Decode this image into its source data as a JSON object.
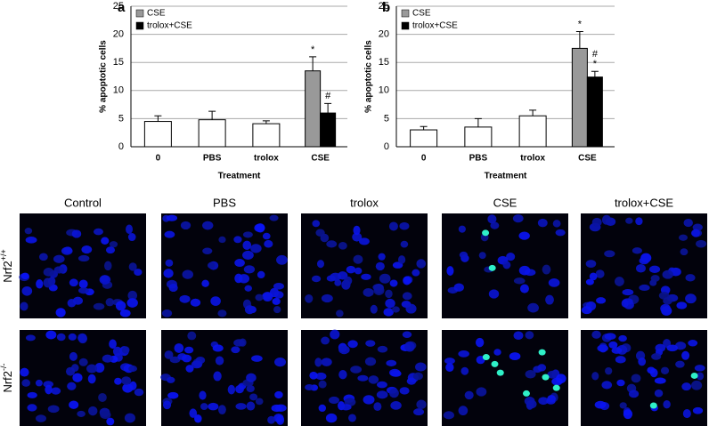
{
  "chart_data": [
    {
      "type": "bar",
      "panel": "a",
      "ylabel": "% apoptotic cells",
      "xlabel": "Treatment",
      "categories": [
        "0",
        "PBS",
        "trolox",
        "CSE"
      ],
      "series": [
        {
          "color": "#ffffff",
          "values": [
            4.5,
            4.8,
            4.1,
            null
          ],
          "errors": [
            1.0,
            1.5,
            0.5,
            null
          ]
        },
        {
          "name": "CSE",
          "color": "#999999",
          "values": [
            null,
            null,
            null,
            13.5
          ],
          "errors": [
            null,
            null,
            null,
            2.5
          ],
          "annotations": [
            null,
            null,
            null,
            [
              "*"
            ]
          ]
        },
        {
          "name": "trolox+CSE",
          "color": "#000000",
          "values": [
            null,
            null,
            null,
            6.0
          ],
          "errors": [
            null,
            null,
            null,
            1.7
          ],
          "annotations": [
            null,
            null,
            null,
            [
              "#"
            ]
          ]
        }
      ],
      "ylim": [
        0,
        25
      ],
      "yticks": [
        0,
        5,
        10,
        15,
        20,
        25
      ],
      "grid": true,
      "legend": "top-left"
    },
    {
      "type": "bar",
      "panel": "b",
      "ylabel": "% apoptotic cells",
      "xlabel": "Treatment",
      "categories": [
        "0",
        "PBS",
        "trolox",
        "CSE"
      ],
      "series": [
        {
          "color": "#ffffff",
          "values": [
            3.0,
            3.5,
            5.5,
            null
          ],
          "errors": [
            0.6,
            1.5,
            1.0,
            null
          ]
        },
        {
          "name": "CSE",
          "color": "#999999",
          "values": [
            null,
            null,
            null,
            17.5
          ],
          "errors": [
            null,
            null,
            null,
            3.0
          ],
          "annotations": [
            null,
            null,
            null,
            [
              "*"
            ]
          ]
        },
        {
          "name": "trolox+CSE",
          "color": "#000000",
          "values": [
            null,
            null,
            null,
            12.4
          ],
          "errors": [
            null,
            null,
            null,
            1.0
          ],
          "annotations": [
            null,
            null,
            null,
            [
              "#",
              "*"
            ]
          ]
        }
      ],
      "ylim": [
        0,
        25
      ],
      "yticks": [
        0,
        5,
        10,
        15,
        20,
        25
      ],
      "grid": true,
      "legend": "top-left"
    }
  ],
  "image_grid": {
    "columns": [
      "Control",
      "PBS",
      "trolox",
      "CSE",
      "trolox+CSE"
    ],
    "rows": [
      {
        "base": "Nrf2",
        "sup": "+/+"
      },
      {
        "base": "Nrf2",
        "sup": "-/-"
      }
    ]
  }
}
